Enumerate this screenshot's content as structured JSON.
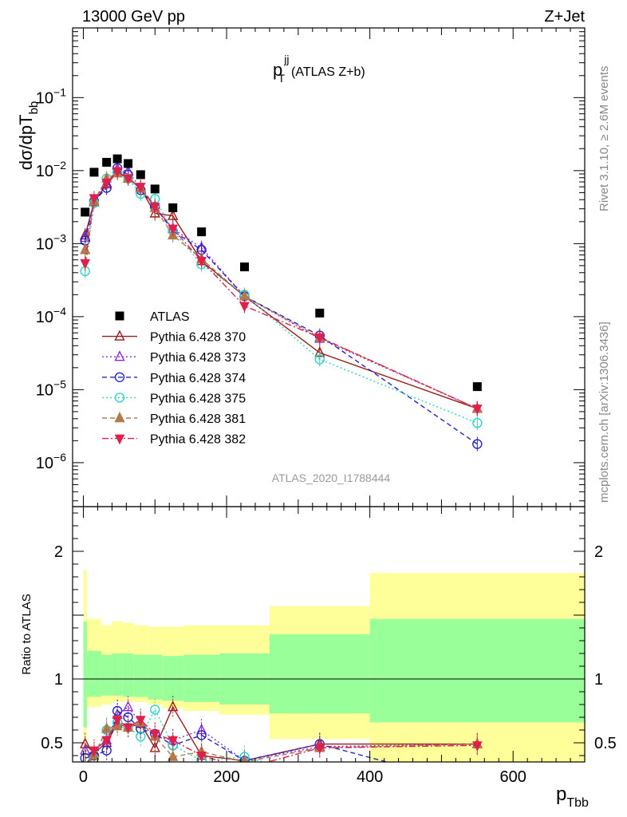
{
  "header": {
    "left": "13000 GeV pp",
    "right": "Z+Jet"
  },
  "side_labels": {
    "rivet": "Rivet 3.1.10, ≥ 2.6M events",
    "mcplots": "mcplots.cern.ch [arXiv:1306.3436]"
  },
  "watermark": "ATLAS_2020_I1788444",
  "chart_data": [
    {
      "type": "line",
      "panel": "main",
      "title": {
        "main": "p",
        "sup": "jj",
        "sub": "T",
        "suffix": "(ATLAS Z+b)"
      },
      "ylabel": {
        "main": "dσ/dpT",
        "sub": "bb"
      },
      "yscale": "log",
      "xlim": [
        -15,
        700
      ],
      "ylim": [
        2.5e-07,
        0.9
      ],
      "ytick_labels": [
        {
          "value": 1e-06,
          "base": "10",
          "exp": "−6"
        },
        {
          "value": 1e-05,
          "base": "10",
          "exp": "−5"
        },
        {
          "value": 0.0001,
          "base": "10",
          "exp": "−4"
        },
        {
          "value": 0.001,
          "base": "10",
          "exp": "−3"
        },
        {
          "value": 0.01,
          "base": "10",
          "exp": "−2"
        },
        {
          "value": 0.1,
          "base": "10",
          "exp": "−1"
        }
      ],
      "legend_position": "lower-left",
      "x": [
        2.5,
        15,
        32.5,
        47.5,
        62.5,
        80,
        100,
        125,
        165,
        225,
        330,
        550
      ],
      "series": [
        {
          "name": "ATLAS",
          "color": "#000000",
          "marker": "square-filled",
          "dash": "none",
          "values": [
            0.0027,
            0.0095,
            0.013,
            0.0145,
            0.0125,
            0.0088,
            0.0056,
            0.0031,
            0.00145,
            0.00048,
            0.000112,
            1.1e-05
          ]
        },
        {
          "name": "Pythia 6.428 370",
          "color": "#9b1b1b",
          "marker": "triangle-open",
          "dash": "solid",
          "values": [
            0.0013,
            0.0037,
            0.0065,
            0.0095,
            0.0078,
            0.0057,
            0.0026,
            0.0024,
            0.00058,
            0.00019,
            3.2e-05,
            5.5e-06
          ]
        },
        {
          "name": "Pythia 6.428 373",
          "color": "#8e2bd4",
          "marker": "triangle-open",
          "dash": "dot",
          "values": [
            0.0012,
            0.0038,
            0.0068,
            0.0105,
            0.0098,
            0.0058,
            0.0031,
            0.0016,
            0.00088,
            0.00019,
            5e-05,
            5.5e-06
          ]
        },
        {
          "name": "Pythia 6.428 374",
          "color": "#2323c8",
          "marker": "circle-open",
          "dash": "dash",
          "values": [
            0.0011,
            0.0038,
            0.0058,
            0.0108,
            0.0088,
            0.0054,
            0.0032,
            0.0015,
            0.00082,
            0.00019,
            5.5e-05,
            1.8e-06
          ]
        },
        {
          "name": "Pythia 6.428 375",
          "color": "#2fd3c3",
          "marker": "circle-open",
          "dash": "dot",
          "values": [
            0.00042,
            0.0036,
            0.0078,
            0.0095,
            0.0078,
            0.0048,
            0.0041,
            0.0015,
            0.00052,
            0.0002,
            2.6e-05,
            3.5e-06
          ]
        },
        {
          "name": "Pythia 6.428 381",
          "color": "#b07a4a",
          "marker": "triangle-filled",
          "dash": "dash",
          "values": [
            0.00082,
            0.0038,
            0.0078,
            0.0092,
            0.0078,
            0.0058,
            0.0031,
            0.0013,
            0.00062,
            0.00019,
            5.2e-05,
            5.5e-06
          ]
        },
        {
          "name": "Pythia 6.428 382",
          "color": "#e0204b",
          "marker": "triangle-down-filled",
          "dash": "dashdot",
          "values": [
            0.00054,
            0.0042,
            0.0068,
            0.0098,
            0.0078,
            0.006,
            0.0032,
            0.0016,
            0.00058,
            0.00014,
            5.2e-05,
            5.5e-06
          ]
        }
      ]
    },
    {
      "type": "line",
      "panel": "ratio",
      "ylabel": "Ratio to ATLAS",
      "xlabel": {
        "main": "p",
        "sub": "Tbb"
      },
      "xlim": [
        -15,
        700
      ],
      "ylim": [
        0.35,
        2.35
      ],
      "xtick_labels": [
        {
          "value": 0,
          "label": "0"
        },
        {
          "value": 200,
          "label": "200"
        },
        {
          "value": 400,
          "label": "400"
        },
        {
          "value": 600,
          "label": "600"
        }
      ],
      "ytick_labels": [
        {
          "value": 0.5,
          "label": "0.5"
        },
        {
          "value": 1,
          "label": "1"
        },
        {
          "value": 2,
          "label": "2"
        }
      ],
      "bands": {
        "edges": [
          0,
          5,
          25,
          40,
          55,
          70,
          90,
          110,
          140,
          190,
          260,
          400,
          700
        ],
        "yellow_low": [
          0.2,
          0.78,
          0.8,
          0.82,
          0.82,
          0.82,
          0.8,
          0.77,
          0.75,
          0.72,
          0.53,
          0.15
        ],
        "yellow_high": [
          1.85,
          1.47,
          1.42,
          1.45,
          1.44,
          1.42,
          1.41,
          1.41,
          1.42,
          1.42,
          1.57,
          1.83
        ],
        "green_low": [
          0.62,
          0.86,
          0.87,
          0.87,
          0.86,
          0.86,
          0.84,
          0.83,
          0.82,
          0.8,
          0.73,
          0.66
        ],
        "green_high": [
          1.45,
          1.22,
          1.19,
          1.2,
          1.2,
          1.19,
          1.19,
          1.18,
          1.19,
          1.2,
          1.35,
          1.47
        ]
      },
      "series": [
        {
          "name": "Pythia 6.428 370",
          "values": [
            0.49,
            0.42,
            0.5,
            0.65,
            0.62,
            0.65,
            0.46,
            0.78,
            0.4,
            0.36,
            0.49,
            0.49
          ]
        },
        {
          "name": "Pythia 6.428 373",
          "values": [
            0.44,
            0.4,
            0.52,
            0.72,
            0.78,
            0.66,
            0.55,
            0.52,
            0.6,
            0.36,
            0.47,
            0.49
          ]
        },
        {
          "name": "Pythia 6.428 374",
          "values": [
            0.38,
            0.4,
            0.44,
            0.75,
            0.7,
            0.61,
            0.57,
            0.48,
            0.56,
            0.36,
            0.49,
            0.16
          ]
        },
        {
          "name": "Pythia 6.428 375",
          "values": [
            0.16,
            0.38,
            0.6,
            0.66,
            0.62,
            0.55,
            0.76,
            0.48,
            0.36,
            0.39,
            0.23,
            0.32
          ]
        },
        {
          "name": "Pythia 6.428 381",
          "values": [
            0.3,
            0.4,
            0.61,
            0.63,
            0.62,
            0.66,
            0.55,
            0.39,
            0.43,
            0.35,
            0.46,
            0.49
          ]
        },
        {
          "name": "Pythia 6.428 382",
          "values": [
            0.2,
            0.44,
            0.52,
            0.68,
            0.62,
            0.68,
            0.57,
            0.52,
            0.4,
            0.3,
            0.46,
            0.48
          ]
        }
      ]
    }
  ]
}
